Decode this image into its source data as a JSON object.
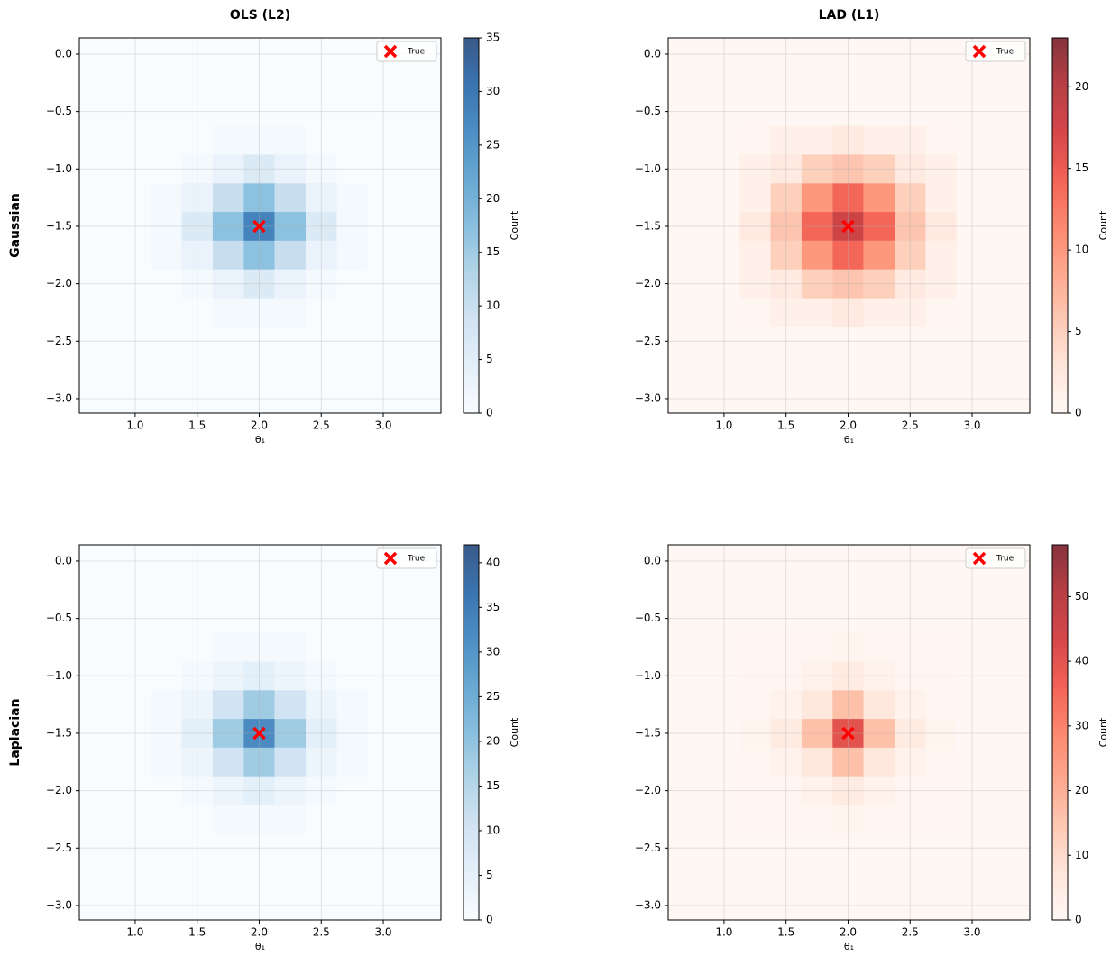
{
  "chart_data": [
    {
      "type": "hist2d",
      "title": "OLS (L2)",
      "row_label": "Gaussian",
      "xlabel": "θ₁",
      "colorbar_label": "Count",
      "xlim": [
        0.55,
        3.465
      ],
      "ylim": [
        -3.126,
        0.141
      ],
      "xticks": [
        {
          "value": 1,
          "label": "1.0"
        },
        1.5,
        {
          "value": 2,
          "label": "2.0"
        },
        2.5,
        {
          "value": 3,
          "label": "3.0"
        }
      ],
      "yticks": [
        {
          "value": 0,
          "label": "0.0"
        },
        {
          "value": -0.5,
          "label": "−0.5"
        },
        {
          "value": -1,
          "label": "−1.0"
        },
        {
          "value": -1.5,
          "label": "−1.5"
        },
        {
          "value": -2,
          "label": "−2.0"
        },
        {
          "value": -2.5,
          "label": "−2.5"
        },
        {
          "value": -3,
          "label": "−3.0"
        }
      ],
      "xbins": [
        1.125,
        1.375,
        1.625,
        1.875,
        2.125,
        2.375,
        2.625,
        2.875
      ],
      "ybins": [
        -2.375,
        -2.125,
        -1.875,
        -1.625,
        -1.375,
        -1.125,
        -0.875,
        -0.625
      ],
      "counts": [
        [
          0,
          0,
          1,
          1,
          1,
          0,
          0
        ],
        [
          0,
          1,
          3,
          6,
          3,
          1,
          0
        ],
        [
          1,
          3,
          10,
          17,
          10,
          3,
          1
        ],
        [
          1,
          6,
          17,
          28,
          17,
          6,
          1
        ],
        [
          1,
          3,
          10,
          17,
          10,
          3,
          1
        ],
        [
          0,
          1,
          3,
          6,
          3,
          1,
          0
        ],
        [
          0,
          0,
          1,
          1,
          1,
          0,
          0
        ]
      ],
      "clim": [
        0,
        35
      ],
      "cticks": [
        0,
        5,
        10,
        15,
        20,
        25,
        30,
        35
      ],
      "colormap": [
        "#f7fbff",
        "#deebf7",
        "#c6dbef",
        "#9ecae1",
        "#6baed6",
        "#4292c6",
        "#2171b5",
        "#08519c",
        "#08306b"
      ],
      "true_point": {
        "x": 2.0,
        "y": -1.5,
        "label": "True",
        "color": "#ff0000"
      },
      "legend": "upper right",
      "grid": true
    },
    {
      "type": "hist2d",
      "title": "LAD (L1)",
      "xlabel": "θ₁",
      "colorbar_label": "Count",
      "xlim": [
        0.55,
        3.465
      ],
      "ylim": [
        -3.126,
        0.141
      ],
      "xticks": [
        {
          "value": 1,
          "label": "1.0"
        },
        1.5,
        {
          "value": 2,
          "label": "2.0"
        },
        2.5,
        {
          "value": 3,
          "label": "3.0"
        }
      ],
      "yticks": [
        {
          "value": 0,
          "label": "0.0"
        },
        {
          "value": -0.5,
          "label": "−0.5"
        },
        {
          "value": -1,
          "label": "−1.0"
        },
        {
          "value": -1.5,
          "label": "−1.5"
        },
        {
          "value": -2,
          "label": "−2.0"
        },
        {
          "value": -2.5,
          "label": "−2.5"
        },
        {
          "value": -3,
          "label": "−3.0"
        }
      ],
      "xbins": [
        1.125,
        1.375,
        1.625,
        1.875,
        2.125,
        2.375,
        2.625,
        2.875
      ],
      "ybins": [
        -2.375,
        -2.125,
        -1.875,
        -1.625,
        -1.375,
        -1.125,
        -0.875,
        -0.625
      ],
      "counts": [
        [
          0,
          1,
          1,
          2,
          1,
          1,
          0
        ],
        [
          1,
          2,
          5,
          6,
          5,
          2,
          1
        ],
        [
          1,
          5,
          10,
          14,
          10,
          5,
          1
        ],
        [
          2,
          6,
          14,
          18,
          14,
          6,
          2
        ],
        [
          1,
          5,
          10,
          14,
          10,
          5,
          1
        ],
        [
          1,
          2,
          5,
          6,
          5,
          2,
          1
        ],
        [
          0,
          1,
          1,
          2,
          1,
          1,
          0
        ]
      ],
      "clim": [
        0,
        23
      ],
      "cticks": [
        0,
        5,
        10,
        15,
        20
      ],
      "colormap": [
        "#fff5f0",
        "#fee0d2",
        "#fcbba1",
        "#fc9272",
        "#fb6a4a",
        "#ef3b2c",
        "#cb181d",
        "#a50f15",
        "#67000d"
      ],
      "true_point": {
        "x": 2.0,
        "y": -1.5,
        "label": "True",
        "color": "#ff0000"
      },
      "legend": "upper right",
      "grid": true
    },
    {
      "type": "hist2d",
      "row_label": "Laplacian",
      "xlabel": "θ₁",
      "colorbar_label": "Count",
      "xlim": [
        0.55,
        3.465
      ],
      "ylim": [
        -3.126,
        0.141
      ],
      "xticks": [
        {
          "value": 1,
          "label": "1.0"
        },
        1.5,
        {
          "value": 2,
          "label": "2.0"
        },
        2.5,
        {
          "value": 3,
          "label": "3.0"
        }
      ],
      "yticks": [
        {
          "value": 0,
          "label": "0.0"
        },
        {
          "value": -0.5,
          "label": "−0.5"
        },
        {
          "value": -1,
          "label": "−1.0"
        },
        {
          "value": -1.5,
          "label": "−1.5"
        },
        {
          "value": -2,
          "label": "−2.0"
        },
        {
          "value": -2.5,
          "label": "−2.5"
        },
        {
          "value": -3,
          "label": "−3.0"
        }
      ],
      "xbins": [
        1.125,
        1.375,
        1.625,
        1.875,
        2.125,
        2.375,
        2.625,
        2.875
      ],
      "ybins": [
        -2.375,
        -2.125,
        -1.875,
        -1.625,
        -1.375,
        -1.125,
        -0.875,
        -0.625
      ],
      "counts": [
        [
          0,
          0,
          1,
          1,
          1,
          0,
          0
        ],
        [
          0,
          1,
          3,
          5,
          3,
          1,
          0
        ],
        [
          1,
          3,
          10,
          18,
          10,
          3,
          1
        ],
        [
          1,
          5,
          18,
          32,
          18,
          5,
          1
        ],
        [
          1,
          3,
          10,
          18,
          10,
          3,
          1
        ],
        [
          0,
          1,
          3,
          5,
          3,
          1,
          0
        ],
        [
          0,
          0,
          1,
          1,
          1,
          0,
          0
        ]
      ],
      "clim": [
        0,
        42
      ],
      "cticks": [
        0,
        5,
        10,
        15,
        20,
        25,
        30,
        35,
        40
      ],
      "colormap": [
        "#f7fbff",
        "#deebf7",
        "#c6dbef",
        "#9ecae1",
        "#6baed6",
        "#4292c6",
        "#2171b5",
        "#08519c",
        "#08306b"
      ],
      "true_point": {
        "x": 2.0,
        "y": -1.5,
        "label": "True",
        "color": "#ff0000"
      },
      "legend": "upper right",
      "grid": true
    },
    {
      "type": "hist2d",
      "xlabel": "θ₁",
      "colorbar_label": "Count",
      "xlim": [
        0.55,
        3.465
      ],
      "ylim": [
        -3.126,
        0.141
      ],
      "xticks": [
        {
          "value": 1,
          "label": "1.0"
        },
        1.5,
        {
          "value": 2,
          "label": "2.0"
        },
        2.5,
        {
          "value": 3,
          "label": "3.0"
        }
      ],
      "yticks": [
        {
          "value": 0,
          "label": "0.0"
        },
        {
          "value": -0.5,
          "label": "−0.5"
        },
        {
          "value": -1,
          "label": "−1.0"
        },
        {
          "value": -1.5,
          "label": "−1.5"
        },
        {
          "value": -2,
          "label": "−2.0"
        },
        {
          "value": -2.5,
          "label": "−2.5"
        },
        {
          "value": -3,
          "label": "−3.0"
        }
      ],
      "xbins": [
        1.125,
        1.375,
        1.625,
        1.875,
        2.125,
        2.375,
        2.625,
        2.875
      ],
      "ybins": [
        -2.375,
        -2.125,
        -1.875,
        -1.625,
        -1.375,
        -1.125,
        -0.875,
        -0.625
      ],
      "counts": [
        [
          0,
          0,
          0,
          1,
          0,
          0,
          0
        ],
        [
          0,
          0,
          2,
          4,
          2,
          0,
          0
        ],
        [
          0,
          2,
          6,
          16,
          6,
          2,
          0
        ],
        [
          1,
          4,
          16,
          40,
          16,
          4,
          1
        ],
        [
          0,
          2,
          6,
          16,
          6,
          2,
          0
        ],
        [
          0,
          0,
          2,
          4,
          2,
          0,
          0
        ],
        [
          0,
          0,
          0,
          1,
          0,
          0,
          0
        ]
      ],
      "clim": [
        0,
        58
      ],
      "cticks": [
        0,
        10,
        20,
        30,
        40,
        50
      ],
      "colormap": [
        "#fff5f0",
        "#fee0d2",
        "#fcbba1",
        "#fc9272",
        "#fb6a4a",
        "#ef3b2c",
        "#cb181d",
        "#a50f15",
        "#67000d"
      ],
      "true_point": {
        "x": 2.0,
        "y": -1.5,
        "label": "True",
        "color": "#ff0000"
      },
      "legend": "upper right",
      "grid": true
    }
  ]
}
